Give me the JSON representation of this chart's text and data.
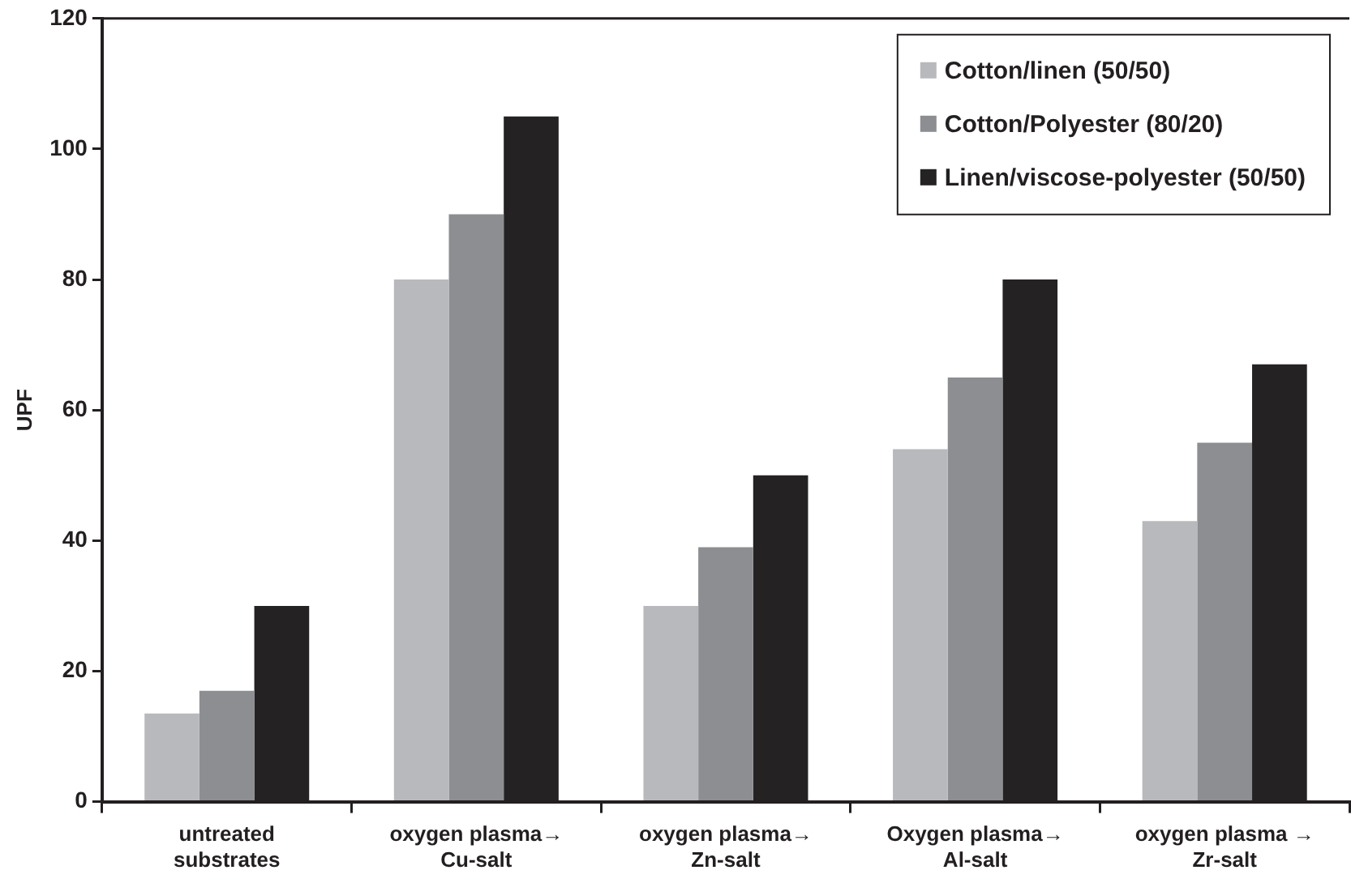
{
  "chart_data": {
    "type": "bar",
    "ylabel": "UPF",
    "categories": [
      "untreated\nsubstrates",
      "oxygen plasma→\nCu-salt",
      "oxygen plasma→\nZn-salt",
      "Oxygen plasma→\nAl-salt",
      "oxygen plasma →\nZr-salt"
    ],
    "series": [
      {
        "name": "Cotton/linen (50/50)",
        "color": "#b8b9bd",
        "values": [
          13.5,
          80,
          30,
          54,
          43
        ]
      },
      {
        "name": "Cotton/Polyester (80/20)",
        "color": "#8d8e92",
        "values": [
          17,
          90,
          39,
          65,
          55
        ]
      },
      {
        "name": "Linen/viscose-polyester (50/50)",
        "color": "#252223",
        "values": [
          30,
          105,
          50,
          80,
          67
        ]
      }
    ],
    "ylim": [
      0,
      120
    ],
    "yticks": [
      0,
      20,
      40,
      60,
      80,
      100,
      120
    ],
    "grid": false,
    "legend": "top right"
  }
}
